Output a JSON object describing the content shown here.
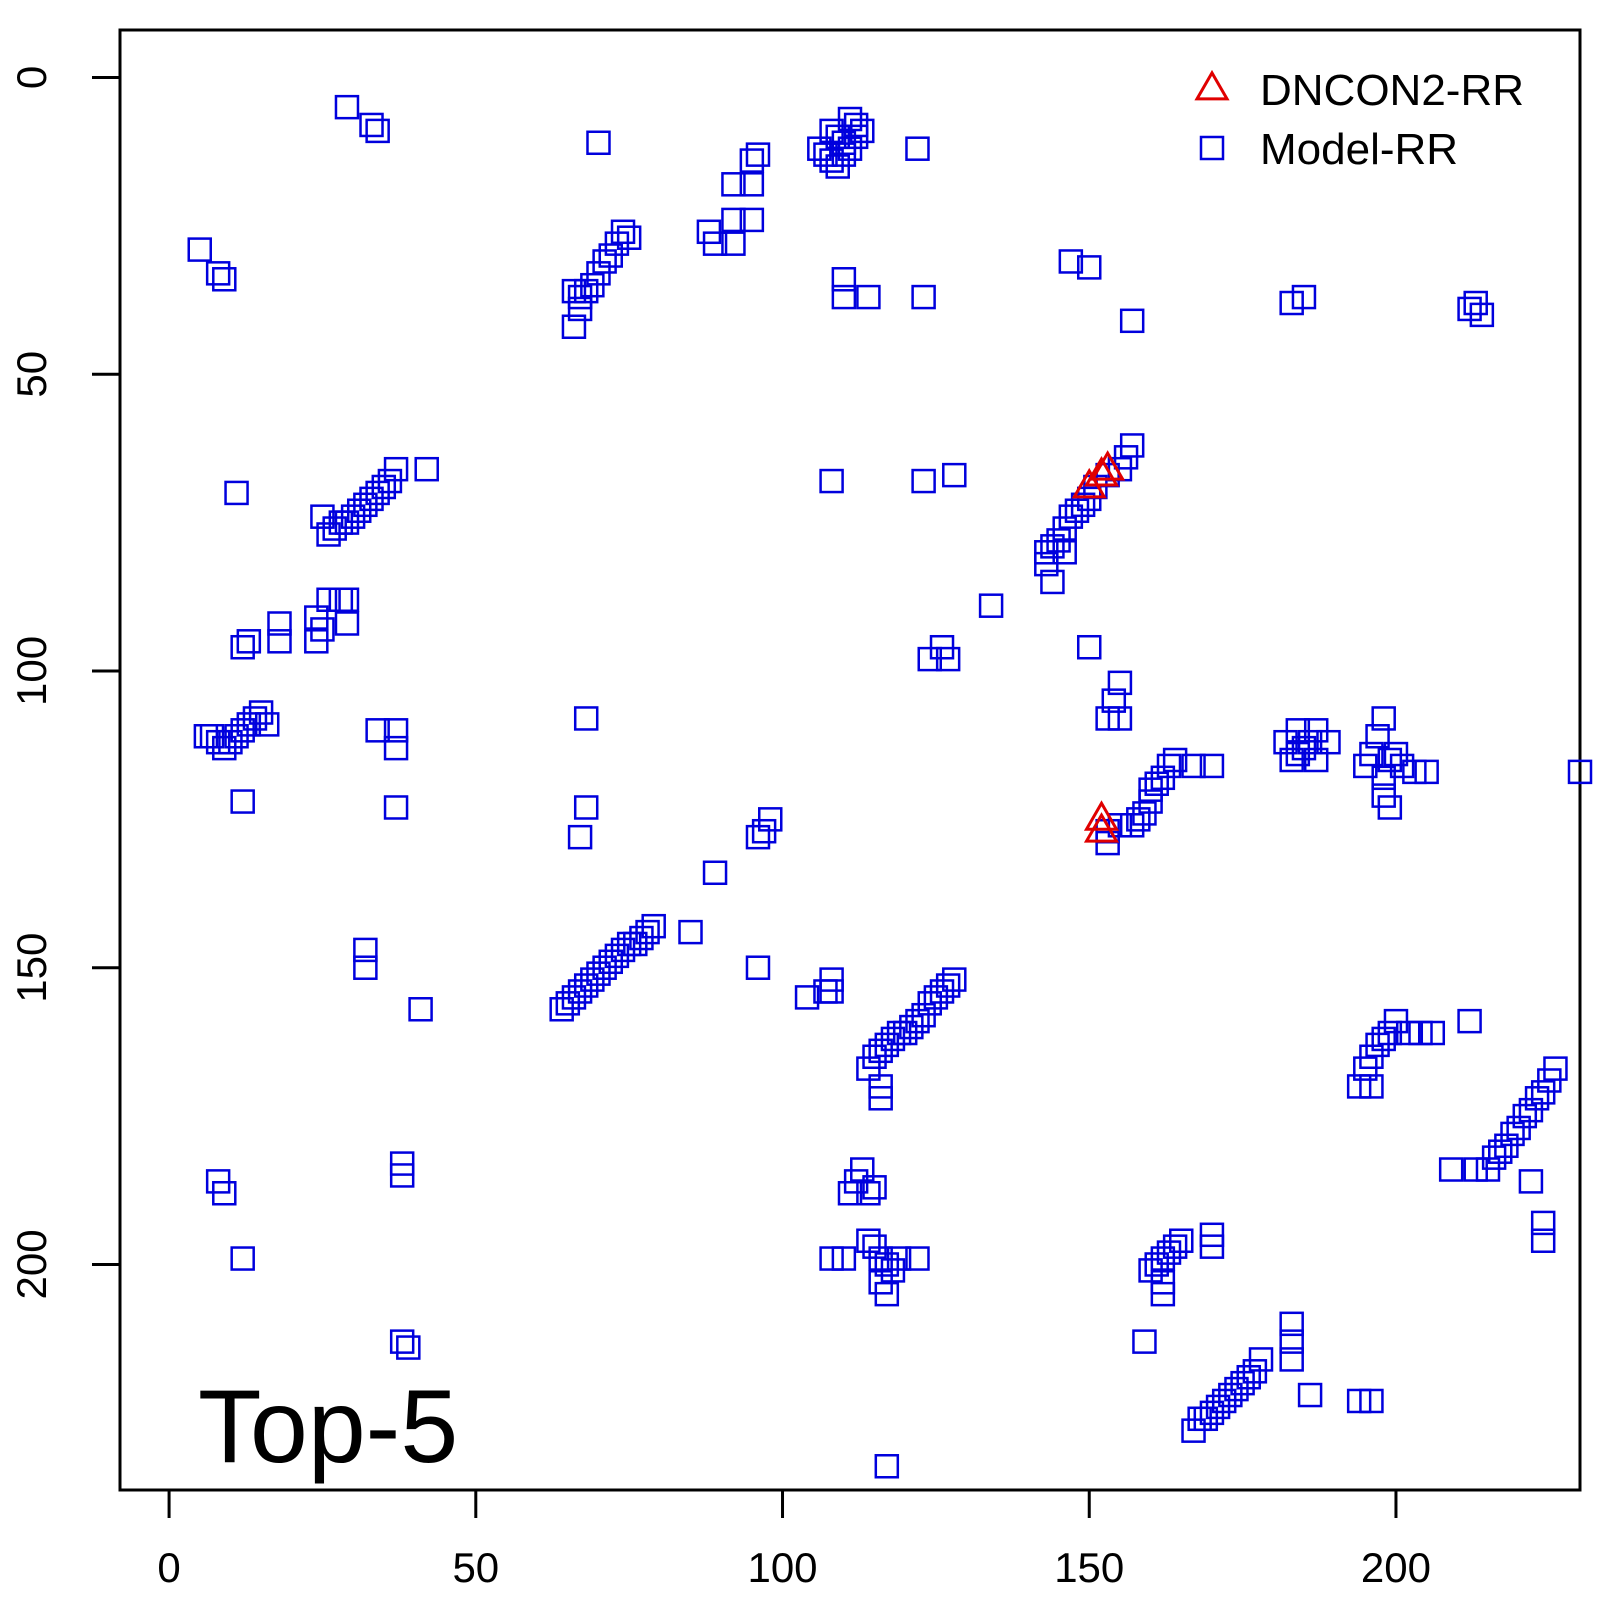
{
  "chart_data": {
    "type": "scatter",
    "title": "",
    "xlabel": "",
    "ylabel": "",
    "xlim": [
      -8,
      230
    ],
    "ylim": [
      -8,
      238
    ],
    "y_inverted": true,
    "x_ticks": [
      "0",
      "50",
      "100",
      "150",
      "200"
    ],
    "y_ticks": [
      "0",
      "50",
      "100",
      "150",
      "200"
    ],
    "legend_position": "top-right",
    "annotation": "Top-5",
    "series": [
      {
        "name": "DNCON2-RR",
        "marker": "triangle",
        "color": "#e00000",
        "points": [
          [
            150,
            69
          ],
          [
            152,
            67
          ],
          [
            153,
            66
          ],
          [
            152,
            125
          ],
          [
            152,
            127
          ]
        ]
      },
      {
        "name": "Model-RR",
        "marker": "square",
        "color": "#0000dd",
        "points": [
          [
            29,
            5
          ],
          [
            33,
            8
          ],
          [
            34,
            9
          ],
          [
            70,
            11
          ],
          [
            122,
            12
          ],
          [
            96,
            13
          ],
          [
            95,
            14
          ],
          [
            92,
            18
          ],
          [
            95,
            18
          ],
          [
            108,
            9
          ],
          [
            109,
            10
          ],
          [
            110,
            11
          ],
          [
            111,
            7
          ],
          [
            112,
            8
          ],
          [
            106,
            12
          ],
          [
            107,
            13
          ],
          [
            108,
            14
          ],
          [
            109,
            15
          ],
          [
            110,
            13
          ],
          [
            111,
            12
          ],
          [
            112,
            10
          ],
          [
            113,
            9
          ],
          [
            5,
            29
          ],
          [
            8,
            33
          ],
          [
            9,
            34
          ],
          [
            92,
            24
          ],
          [
            95,
            24
          ],
          [
            88,
            26
          ],
          [
            89,
            28
          ],
          [
            92,
            28
          ],
          [
            74,
            26
          ],
          [
            75,
            27
          ],
          [
            73,
            28
          ],
          [
            72,
            30
          ],
          [
            71,
            31
          ],
          [
            70,
            33
          ],
          [
            69,
            35
          ],
          [
            68,
            36
          ],
          [
            67,
            37
          ],
          [
            66,
            36
          ],
          [
            67,
            39
          ],
          [
            66,
            42
          ],
          [
            110,
            34
          ],
          [
            110,
            37
          ],
          [
            114,
            37
          ],
          [
            123,
            37
          ],
          [
            147,
            31
          ],
          [
            150,
            32
          ],
          [
            157,
            41
          ],
          [
            183,
            38
          ],
          [
            185,
            37
          ],
          [
            213,
            38
          ],
          [
            214,
            40
          ],
          [
            212,
            39
          ],
          [
            11,
            70
          ],
          [
            108,
            68
          ],
          [
            123,
            68
          ],
          [
            128,
            67
          ],
          [
            42,
            66
          ],
          [
            37,
            66
          ],
          [
            36,
            68
          ],
          [
            35,
            69
          ],
          [
            34,
            70
          ],
          [
            33,
            71
          ],
          [
            32,
            72
          ],
          [
            31,
            73
          ],
          [
            30,
            74
          ],
          [
            29,
            75
          ],
          [
            28,
            75
          ],
          [
            27,
            76
          ],
          [
            26,
            77
          ],
          [
            25,
            74
          ],
          [
            157,
            62
          ],
          [
            156,
            64
          ],
          [
            155,
            66
          ],
          [
            153,
            67
          ],
          [
            151,
            69
          ],
          [
            150,
            71
          ],
          [
            149,
            72
          ],
          [
            148,
            73
          ],
          [
            147,
            74
          ],
          [
            146,
            76
          ],
          [
            145,
            78
          ],
          [
            144,
            79
          ],
          [
            143,
            80
          ],
          [
            143,
            82
          ],
          [
            146,
            80
          ],
          [
            144,
            85
          ],
          [
            134,
            89
          ],
          [
            26,
            88
          ],
          [
            28,
            88
          ],
          [
            29,
            88
          ],
          [
            24,
            91
          ],
          [
            24,
            95
          ],
          [
            25,
            93
          ],
          [
            29,
            92
          ],
          [
            18,
            92
          ],
          [
            18,
            95
          ],
          [
            13,
            95
          ],
          [
            12,
            96
          ],
          [
            126,
            96
          ],
          [
            124,
            98
          ],
          [
            127,
            98
          ],
          [
            150,
            96
          ],
          [
            155,
            102
          ],
          [
            154,
            105
          ],
          [
            153,
            108
          ],
          [
            155,
            108
          ],
          [
            68,
            108
          ],
          [
            15,
            107
          ],
          [
            14,
            108
          ],
          [
            13,
            109
          ],
          [
            12,
            110
          ],
          [
            11,
            111
          ],
          [
            10,
            112
          ],
          [
            9,
            113
          ],
          [
            8,
            112
          ],
          [
            7,
            111
          ],
          [
            6,
            111
          ],
          [
            16,
            109
          ],
          [
            34,
            110
          ],
          [
            37,
            110
          ],
          [
            37,
            113
          ],
          [
            12,
            122
          ],
          [
            37,
            123
          ],
          [
            68,
            123
          ],
          [
            67,
            128
          ],
          [
            98,
            125
          ],
          [
            97,
            127
          ],
          [
            96,
            128
          ],
          [
            89,
            134
          ],
          [
            184,
            110
          ],
          [
            187,
            110
          ],
          [
            186,
            112
          ],
          [
            185,
            113
          ],
          [
            184,
            114
          ],
          [
            183,
            115
          ],
          [
            182,
            112
          ],
          [
            189,
            112
          ],
          [
            187,
            115
          ],
          [
            198,
            108
          ],
          [
            197,
            111
          ],
          [
            196,
            114
          ],
          [
            195,
            116
          ],
          [
            199,
            115
          ],
          [
            200,
            114
          ],
          [
            201,
            116
          ],
          [
            203,
            117
          ],
          [
            205,
            117
          ],
          [
            198,
            118
          ],
          [
            198,
            121
          ],
          [
            199,
            123
          ],
          [
            230,
            117
          ],
          [
            164,
            115
          ],
          [
            167,
            116
          ],
          [
            170,
            116
          ],
          [
            163,
            116
          ],
          [
            162,
            118
          ],
          [
            161,
            119
          ],
          [
            160,
            120
          ],
          [
            160,
            122
          ],
          [
            159,
            124
          ],
          [
            158,
            125
          ],
          [
            157,
            126
          ],
          [
            155,
            126
          ],
          [
            153,
            127
          ],
          [
            153,
            129
          ],
          [
            79,
            143
          ],
          [
            78,
            144
          ],
          [
            77,
            145
          ],
          [
            76,
            146
          ],
          [
            75,
            146
          ],
          [
            74,
            147
          ],
          [
            73,
            148
          ],
          [
            72,
            149
          ],
          [
            71,
            150
          ],
          [
            70,
            151
          ],
          [
            69,
            152
          ],
          [
            68,
            153
          ],
          [
            67,
            154
          ],
          [
            66,
            155
          ],
          [
            65,
            156
          ],
          [
            64,
            157
          ],
          [
            85,
            144
          ],
          [
            96,
            150
          ],
          [
            32,
            147
          ],
          [
            32,
            150
          ],
          [
            41,
            157
          ],
          [
            104,
            155
          ],
          [
            107,
            154
          ],
          [
            108,
            152
          ],
          [
            108,
            154
          ],
          [
            128,
            152
          ],
          [
            127,
            153
          ],
          [
            126,
            154
          ],
          [
            125,
            155
          ],
          [
            124,
            156
          ],
          [
            123,
            158
          ],
          [
            122,
            159
          ],
          [
            121,
            160
          ],
          [
            120,
            161
          ],
          [
            119,
            161
          ],
          [
            118,
            162
          ],
          [
            117,
            163
          ],
          [
            116,
            164
          ],
          [
            115,
            165
          ],
          [
            114,
            167
          ],
          [
            116,
            170
          ],
          [
            116,
            172
          ],
          [
            200,
            159
          ],
          [
            199,
            161
          ],
          [
            198,
            162
          ],
          [
            197,
            163
          ],
          [
            196,
            165
          ],
          [
            195,
            167
          ],
          [
            194,
            170
          ],
          [
            196,
            170
          ],
          [
            202,
            161
          ],
          [
            204,
            161
          ],
          [
            206,
            161
          ],
          [
            212,
            159
          ],
          [
            226,
            167
          ],
          [
            225,
            169
          ],
          [
            224,
            171
          ],
          [
            223,
            172
          ],
          [
            222,
            174
          ],
          [
            221,
            175
          ],
          [
            220,
            177
          ],
          [
            219,
            178
          ],
          [
            218,
            180
          ],
          [
            217,
            181
          ],
          [
            216,
            182
          ],
          [
            215,
            184
          ],
          [
            209,
            184
          ],
          [
            213,
            184
          ],
          [
            222,
            186
          ],
          [
            224,
            193
          ],
          [
            224,
            196
          ],
          [
            8,
            186
          ],
          [
            9,
            188
          ],
          [
            38,
            183
          ],
          [
            38,
            185
          ],
          [
            12,
            199
          ],
          [
            38,
            213
          ],
          [
            39,
            214
          ],
          [
            113,
            184
          ],
          [
            112,
            186
          ],
          [
            111,
            188
          ],
          [
            114,
            188
          ],
          [
            115,
            187
          ],
          [
            108,
            199
          ],
          [
            110,
            199
          ],
          [
            114,
            196
          ],
          [
            115,
            197
          ],
          [
            116,
            199
          ],
          [
            117,
            200
          ],
          [
            118,
            201
          ],
          [
            116,
            203
          ],
          [
            117,
            205
          ],
          [
            119,
            199
          ],
          [
            122,
            199
          ],
          [
            170,
            195
          ],
          [
            170,
            197
          ],
          [
            165,
            196
          ],
          [
            164,
            197
          ],
          [
            163,
            198
          ],
          [
            162,
            199
          ],
          [
            161,
            200
          ],
          [
            160,
            201
          ],
          [
            162,
            203
          ],
          [
            162,
            205
          ],
          [
            159,
            213
          ],
          [
            183,
            210
          ],
          [
            183,
            213
          ],
          [
            183,
            216
          ],
          [
            178,
            216
          ],
          [
            177,
            218
          ],
          [
            176,
            219
          ],
          [
            175,
            220
          ],
          [
            174,
            221
          ],
          [
            173,
            222
          ],
          [
            172,
            223
          ],
          [
            171,
            224
          ],
          [
            170,
            225
          ],
          [
            169,
            226
          ],
          [
            168,
            226
          ],
          [
            167,
            228
          ],
          [
            186,
            222
          ],
          [
            194,
            223
          ],
          [
            196,
            223
          ],
          [
            117,
            234
          ]
        ]
      }
    ]
  }
}
